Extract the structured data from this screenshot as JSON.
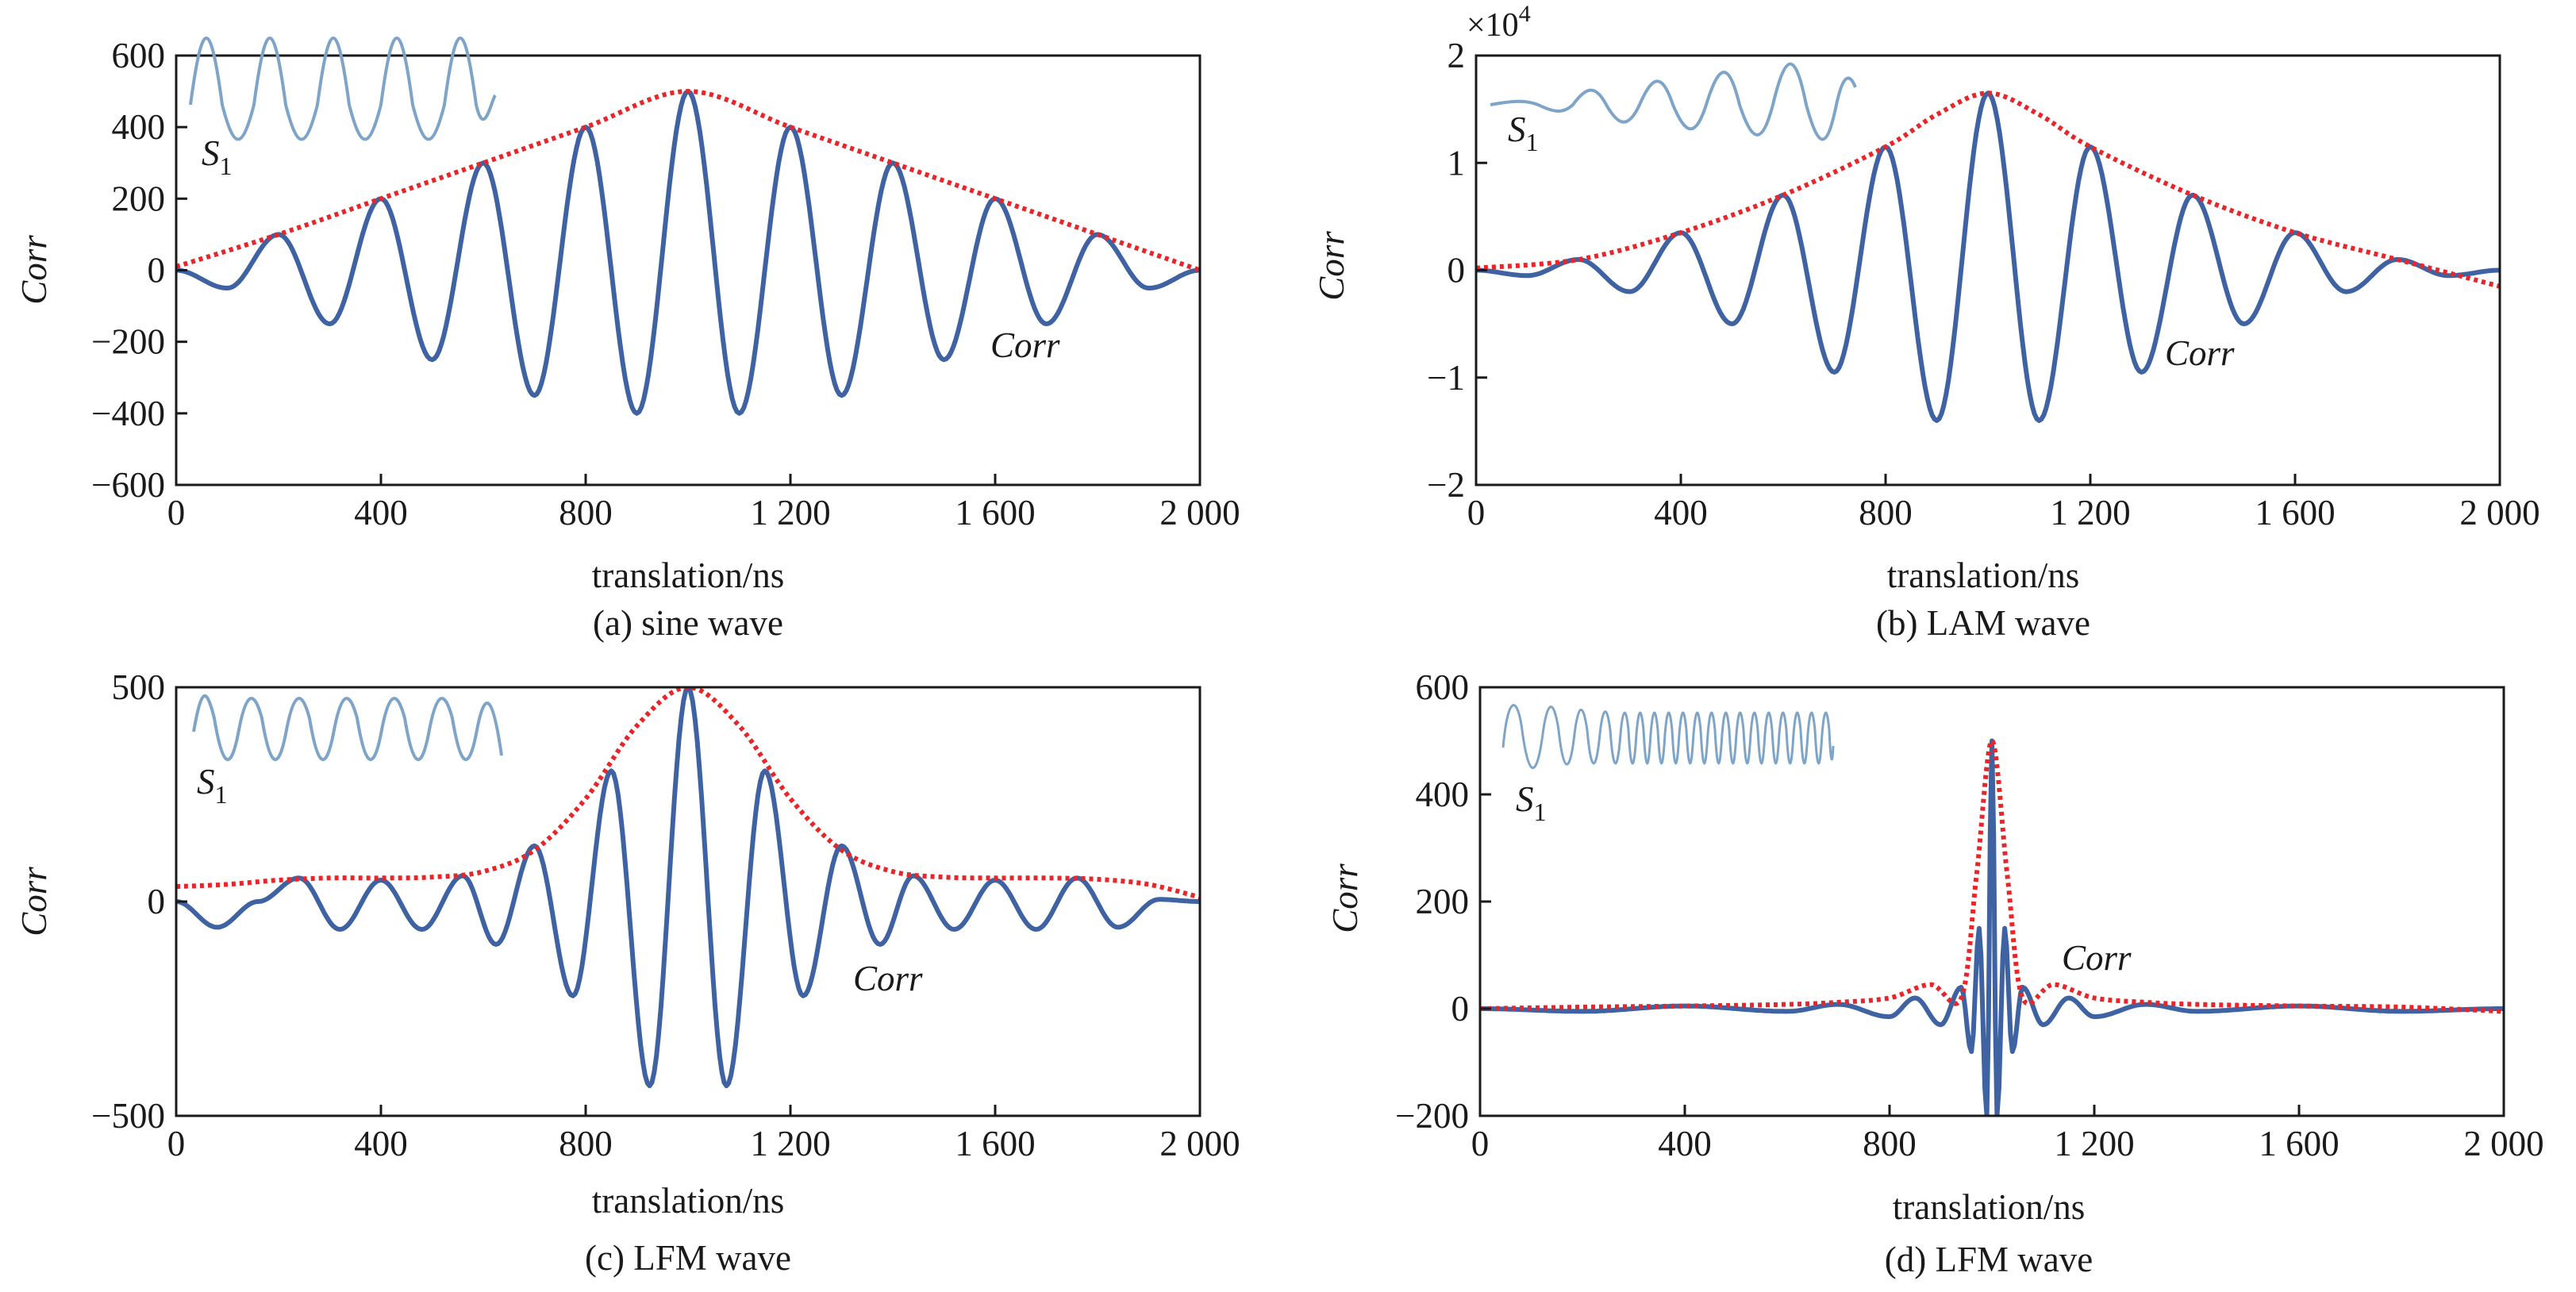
{
  "figure": {
    "panels": [
      {
        "id": "a",
        "caption": "(a) sine wave",
        "xlabel": "translation/ns",
        "ylabel": "Corr",
        "multiplier": "",
        "curve_annotation": "Corr",
        "inset_label": "S",
        "inset_subscript": "1"
      },
      {
        "id": "b",
        "caption": "(b) LAM wave",
        "xlabel": "translation/ns",
        "ylabel": "Corr",
        "multiplier": "×10",
        "multiplier_exponent": "4",
        "curve_annotation": "Corr",
        "inset_label": "S",
        "inset_subscript": "1"
      },
      {
        "id": "c",
        "caption": "(c) LFM wave",
        "xlabel": "translation/ns",
        "ylabel": "Corr",
        "multiplier": "",
        "curve_annotation": "Corr",
        "inset_label": "S",
        "inset_subscript": "1"
      },
      {
        "id": "d",
        "caption": "(d) LFM wave",
        "xlabel": "translation/ns",
        "ylabel": "Corr",
        "multiplier": "",
        "curve_annotation": "Corr",
        "inset_label": "S",
        "inset_subscript": "1"
      }
    ]
  },
  "colors": {
    "correlation_line": "#3f63a2",
    "envelope_dots": "#e8262a",
    "inset_wave": "#7ea4c8",
    "axis": "#1a1a1a"
  },
  "chart_data": [
    {
      "type": "line",
      "title": "",
      "caption": "(a) sine wave",
      "xlabel": "translation/ns",
      "ylabel": "Corr",
      "xlim": [
        0,
        2000
      ],
      "ylim": [
        -600,
        600
      ],
      "xticks": [
        0,
        400,
        800,
        1200,
        1600,
        2000
      ],
      "xtick_labels": [
        "0",
        "400",
        "800",
        "1 200",
        "1 600",
        "2 000"
      ],
      "yticks": [
        -600,
        -400,
        -200,
        0,
        200,
        400,
        600
      ],
      "ytick_labels": [
        "−600",
        "−400",
        "−200",
        "0",
        "200",
        "400",
        "600"
      ],
      "grid": false,
      "series": [
        {
          "name": "",
          "style": "solid blue correlation curve",
          "x": [
            0,
            100,
            200,
            300,
            400,
            500,
            600,
            700,
            800,
            900,
            1000,
            1100,
            1200,
            1300,
            1400,
            1500,
            1600,
            1700,
            1800,
            1900,
            2000
          ],
          "y": [
            0,
            -50,
            100,
            -150,
            200,
            -250,
            300,
            -350,
            400,
            -400,
            500,
            -400,
            400,
            -350,
            300,
            -250,
            200,
            -150,
            100,
            -50,
            0
          ]
        },
        {
          "name": "",
          "style": "red dotted envelope",
          "x": [
            0,
            200,
            400,
            600,
            800,
            1000,
            1200,
            1400,
            1600,
            1800,
            2000
          ],
          "y": [
            10,
            100,
            200,
            300,
            400,
            500,
            400,
            300,
            200,
            100,
            0
          ]
        }
      ],
      "annotations": [
        {
          "text": "Corr",
          "x": 1600,
          "y": -230
        }
      ],
      "inset": {
        "label": "S1",
        "description": "sine wave"
      }
    },
    {
      "type": "line",
      "title": "",
      "caption": "(b) LAM wave",
      "xlabel": "translation/ns",
      "ylabel": "Corr",
      "y_multiplier": "×10^4",
      "xlim": [
        0,
        2000
      ],
      "ylim": [
        -2,
        2
      ],
      "xticks": [
        0,
        400,
        800,
        1200,
        1600,
        2000
      ],
      "xtick_labels": [
        "0",
        "400",
        "800",
        "1 200",
        "1 600",
        "2 000"
      ],
      "yticks": [
        -2,
        -1,
        0,
        1,
        2
      ],
      "ytick_labels": [
        "−2",
        "−1",
        "0",
        "1",
        "2"
      ],
      "grid": false,
      "series": [
        {
          "name": "",
          "style": "solid blue correlation curve",
          "x": [
            0,
            100,
            200,
            300,
            400,
            500,
            600,
            700,
            800,
            900,
            1000,
            1100,
            1200,
            1300,
            1400,
            1500,
            1600,
            1700,
            1800,
            1900,
            2000
          ],
          "y": [
            0,
            -0.05,
            0.1,
            -0.2,
            0.35,
            -0.5,
            0.7,
            -0.95,
            1.15,
            -1.4,
            1.65,
            -1.4,
            1.15,
            -0.95,
            0.7,
            -0.5,
            0.35,
            -0.2,
            0.1,
            -0.05,
            0
          ]
        },
        {
          "name": "",
          "style": "red dotted envelope",
          "x": [
            0,
            200,
            400,
            600,
            800,
            900,
            1000,
            1100,
            1200,
            1400,
            1600,
            1800,
            2000
          ],
          "y": [
            0.02,
            0.1,
            0.35,
            0.7,
            1.15,
            1.45,
            1.65,
            1.45,
            1.15,
            0.7,
            0.35,
            0.1,
            -0.15
          ]
        }
      ],
      "annotations": [
        {
          "text": "Corr",
          "x": 1320,
          "y": -0.8
        }
      ],
      "inset": {
        "label": "S1",
        "description": "amplitude-modulated wave"
      }
    },
    {
      "type": "line",
      "title": "",
      "caption": "(c) LFM wave",
      "xlabel": "translation/ns",
      "ylabel": "Corr",
      "xlim": [
        0,
        2000
      ],
      "ylim": [
        -500,
        500
      ],
      "xticks": [
        0,
        400,
        800,
        1200,
        1600,
        2000
      ],
      "xtick_labels": [
        "0",
        "400",
        "800",
        "1 200",
        "1 600",
        "2 000"
      ],
      "yticks": [
        -500,
        0,
        500
      ],
      "ytick_labels": [
        "−500",
        "0",
        "500"
      ],
      "grid": false,
      "series": [
        {
          "name": "",
          "style": "solid blue correlation curve",
          "x": [
            0,
            80,
            160,
            240,
            320,
            400,
            480,
            560,
            625,
            700,
            775,
            850,
            925,
            1000,
            1075,
            1150,
            1225,
            1300,
            1375,
            1440,
            1520,
            1600,
            1680,
            1760,
            1840,
            1920,
            2000
          ],
          "y": [
            0,
            -60,
            0,
            55,
            -65,
            50,
            -65,
            60,
            -100,
            130,
            -220,
            305,
            -430,
            500,
            -430,
            305,
            -220,
            130,
            -100,
            60,
            -65,
            50,
            -65,
            55,
            -60,
            5,
            0
          ],
          "curve_points_note": ""
        },
        {
          "name": "",
          "style": "red dotted envelope",
          "x": [
            0,
            100,
            200,
            300,
            400,
            500,
            600,
            700,
            800,
            900,
            1000,
            1100,
            1200,
            1300,
            1400,
            1500,
            1600,
            1700,
            1800,
            1900,
            2000
          ],
          "y": [
            35,
            40,
            50,
            55,
            55,
            57,
            70,
            120,
            240,
            410,
            500,
            410,
            240,
            120,
            70,
            57,
            55,
            55,
            52,
            40,
            10
          ]
        }
      ],
      "annotations": [
        {
          "text": "Corr",
          "x": 1250,
          "y": -180
        }
      ],
      "inset": {
        "label": "S1",
        "description": "sine-like wave"
      }
    },
    {
      "type": "line",
      "title": "",
      "caption": "(d) LFM wave",
      "xlabel": "translation/ns",
      "ylabel": "Corr",
      "xlim": [
        0,
        2000
      ],
      "ylim": [
        -200,
        600
      ],
      "xticks": [
        0,
        400,
        800,
        1200,
        1600,
        2000
      ],
      "xtick_labels": [
        "0",
        "400",
        "800",
        "1 200",
        "1 600",
        "2 000"
      ],
      "yticks": [
        -200,
        0,
        200,
        400,
        600
      ],
      "ytick_labels": [
        "−200",
        "0",
        "200",
        "400",
        "600"
      ],
      "grid": false,
      "series": [
        {
          "name": "",
          "style": "solid blue correlation curve",
          "x": [
            0,
            200,
            400,
            600,
            700,
            800,
            850,
            900,
            940,
            960,
            975,
            990,
            1000,
            1010,
            1025,
            1040,
            1060,
            1100,
            1150,
            1200,
            1300,
            1400,
            1600,
            1800,
            2000
          ],
          "y": [
            0,
            -5,
            5,
            -5,
            8,
            -15,
            20,
            -30,
            40,
            -80,
            150,
            -200,
            500,
            -200,
            150,
            -80,
            40,
            -30,
            20,
            -15,
            8,
            -5,
            5,
            -5,
            0
          ]
        },
        {
          "name": "",
          "style": "red dotted envelope",
          "x": [
            0,
            200,
            400,
            600,
            700,
            800,
            880,
            940,
            970,
            1000,
            1030,
            1060,
            1120,
            1200,
            1300,
            1400,
            1600,
            1800,
            2000
          ],
          "y": [
            0,
            3,
            5,
            8,
            12,
            20,
            45,
            20,
            250,
            500,
            250,
            20,
            45,
            20,
            12,
            8,
            5,
            3,
            -5
          ]
        }
      ],
      "annotations": [
        {
          "text": "Corr",
          "x": 1120,
          "y": 85
        }
      ],
      "inset": {
        "label": "S1",
        "description": "linear frequency-modulated chirp"
      }
    }
  ]
}
